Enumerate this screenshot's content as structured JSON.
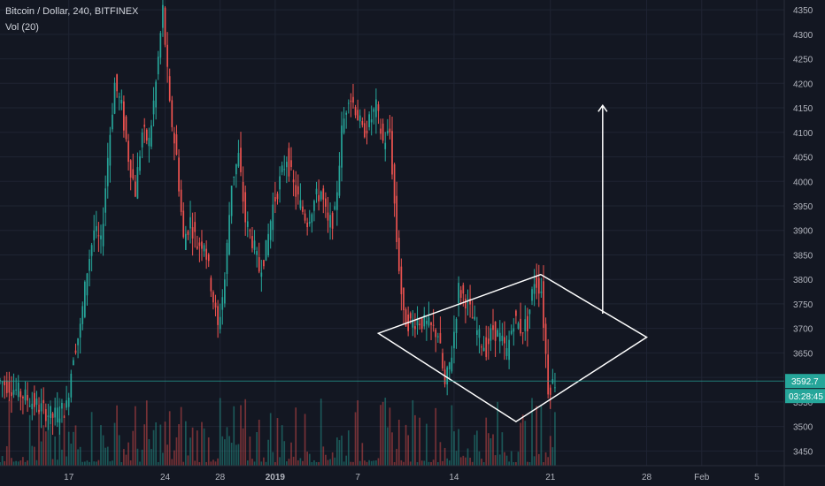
{
  "chart_data": {
    "type": "candlestick",
    "title": "Bitcoin / Dollar, 240, BITFINEX",
    "indicator": "Vol (20)",
    "ylim": [
      3420,
      4370
    ],
    "yticks": [
      3450,
      3500,
      3550,
      3600,
      3650,
      3700,
      3750,
      3800,
      3850,
      3900,
      3950,
      4000,
      4050,
      4100,
      4150,
      4200,
      4250,
      4300,
      4350
    ],
    "xticks": [
      {
        "label": "17",
        "day": 17,
        "bold": false
      },
      {
        "label": "24",
        "day": 24,
        "bold": false
      },
      {
        "label": "28",
        "day": 28,
        "bold": false
      },
      {
        "label": "2019",
        "day": 32,
        "bold": true
      },
      {
        "label": "7",
        "day": 38,
        "bold": false
      },
      {
        "label": "14",
        "day": 45,
        "bold": false
      },
      {
        "label": "21",
        "day": 52,
        "bold": false
      },
      {
        "label": "28",
        "day": 59,
        "bold": false
      },
      {
        "label": "Feb",
        "day": 63,
        "bold": false
      },
      {
        "label": "5",
        "day": 67,
        "bold": false
      }
    ],
    "x_day_range": [
      12,
      69
    ],
    "last_price": "3592.7",
    "countdown": "03:28:45",
    "colors": {
      "up": "#26a69a",
      "down": "#ef5350",
      "vol_up": "#26a69a",
      "vol_down": "#ef5350",
      "drawing": "#ffffff",
      "axis_label_bg": "#26a69a"
    },
    "price_path": [
      [
        12,
        3595
      ],
      [
        13,
        3580
      ],
      [
        14,
        3560
      ],
      [
        15,
        3540
      ],
      [
        16,
        3520
      ],
      [
        17,
        3540
      ],
      [
        17.5,
        3650
      ],
      [
        18,
        3700
      ],
      [
        18.5,
        3820
      ],
      [
        19,
        3900
      ],
      [
        19.5,
        3870
      ],
      [
        20,
        4050
      ],
      [
        20.5,
        4200
      ],
      [
        21,
        4150
      ],
      [
        21.5,
        4050
      ],
      [
        22,
        3980
      ],
      [
        22.5,
        4100
      ],
      [
        23,
        4080
      ],
      [
        23.5,
        4200
      ],
      [
        24,
        4350
      ],
      [
        24.5,
        4150
      ],
      [
        25,
        4050
      ],
      [
        25.5,
        3880
      ],
      [
        26,
        3920
      ],
      [
        26.5,
        3870
      ],
      [
        27,
        3880
      ],
      [
        27.5,
        3790
      ],
      [
        28,
        3700
      ],
      [
        28.5,
        3800
      ],
      [
        29,
        4000
      ],
      [
        29.5,
        4050
      ],
      [
        30,
        3920
      ],
      [
        30.5,
        3880
      ],
      [
        31,
        3820
      ],
      [
        31.5,
        3860
      ],
      [
        32,
        3950
      ],
      [
        32.5,
        4000
      ],
      [
        33,
        4050
      ],
      [
        33.5,
        3990
      ],
      [
        34,
        3950
      ],
      [
        34.5,
        3920
      ],
      [
        35,
        3960
      ],
      [
        35.5,
        3980
      ],
      [
        36,
        3910
      ],
      [
        36.5,
        3930
      ],
      [
        37,
        4100
      ],
      [
        37.5,
        4180
      ],
      [
        38,
        4150
      ],
      [
        38.5,
        4100
      ],
      [
        39,
        4120
      ],
      [
        39.5,
        4150
      ],
      [
        40,
        4080
      ],
      [
        40.5,
        4100
      ],
      [
        41,
        3880
      ],
      [
        41.5,
        3720
      ],
      [
        42,
        3710
      ],
      [
        42.5,
        3720
      ],
      [
        43,
        3710
      ],
      [
        43.5,
        3700
      ],
      [
        44,
        3690
      ],
      [
        44.5,
        3580
      ],
      [
        45,
        3650
      ],
      [
        45.5,
        3780
      ],
      [
        46,
        3760
      ],
      [
        46.5,
        3720
      ],
      [
        47,
        3680
      ],
      [
        47.5,
        3660
      ],
      [
        48,
        3700
      ],
      [
        48.5,
        3680
      ],
      [
        49,
        3650
      ],
      [
        49.5,
        3720
      ],
      [
        50,
        3700
      ],
      [
        50.5,
        3710
      ],
      [
        51,
        3800
      ],
      [
        51.5,
        3780
      ],
      [
        52,
        3580
      ],
      [
        52.5,
        3592.7
      ]
    ],
    "drawings": {
      "diamond": [
        [
          39.5,
          3690
        ],
        [
          51.3,
          3810
        ],
        [
          59,
          3682
        ],
        [
          49.5,
          3510
        ]
      ],
      "arrow": [
        [
          55.8,
          3730
        ],
        [
          55.8,
          4155
        ]
      ]
    }
  }
}
